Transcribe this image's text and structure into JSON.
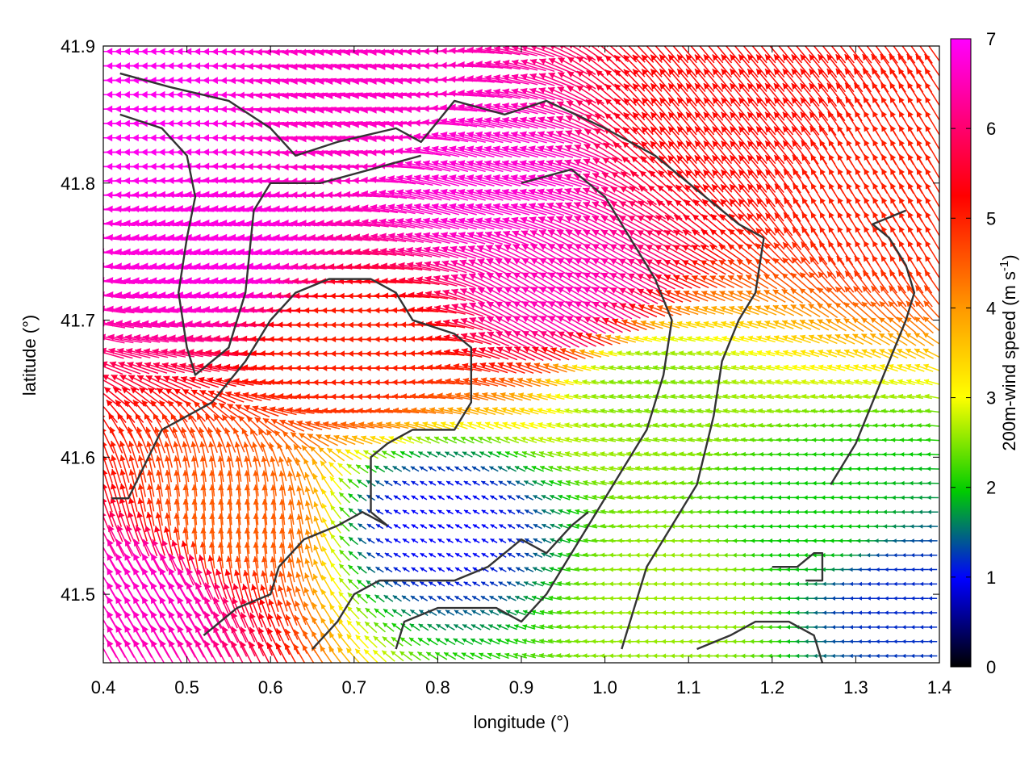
{
  "chart_data": {
    "type": "vector-field",
    "xlabel": "longitude (°)",
    "ylabel": "latitude (°)",
    "xlim": [
      0.4,
      1.4
    ],
    "ylim": [
      41.45,
      41.9
    ],
    "xticks": [
      "0.4",
      "0.5",
      "0.6",
      "0.7",
      "0.8",
      "0.9",
      "1.0",
      "1.1",
      "1.2",
      "1.3",
      "1.4"
    ],
    "yticks": [
      "41.5",
      "41.6",
      "41.7",
      "41.8",
      "41.9"
    ],
    "colorbar": {
      "title_main": "200m-wind speed (m s",
      "title_sup": "-1",
      "title_end": ")",
      "range": [
        0,
        7
      ],
      "ticks": [
        "0",
        "1",
        "2",
        "3",
        "4",
        "5",
        "6",
        "7"
      ],
      "palette": [
        "#000000",
        "#0000ff",
        "#00cc00",
        "#ffff00",
        "#ff9900",
        "#ff0000",
        "#ff00ff"
      ]
    },
    "wind_regions": [
      {
        "lon": 0.45,
        "lat": 41.85,
        "speed": 6.9,
        "direction_deg": 270
      },
      {
        "lon": 0.55,
        "lat": 41.75,
        "speed": 6.8,
        "direction_deg": 275
      },
      {
        "lon": 0.7,
        "lat": 41.85,
        "speed": 6.6,
        "direction_deg": 265
      },
      {
        "lon": 0.85,
        "lat": 41.8,
        "speed": 6.7,
        "direction_deg": 285
      },
      {
        "lon": 0.95,
        "lat": 41.72,
        "speed": 6.5,
        "direction_deg": 300
      },
      {
        "lon": 1.15,
        "lat": 41.85,
        "speed": 5.2,
        "direction_deg": 320
      },
      {
        "lon": 1.35,
        "lat": 41.8,
        "speed": 5.0,
        "direction_deg": 330
      },
      {
        "lon": 0.7,
        "lat": 41.68,
        "speed": 5.0,
        "direction_deg": 270
      },
      {
        "lon": 0.55,
        "lat": 41.55,
        "speed": 4.5,
        "direction_deg": 355
      },
      {
        "lon": 0.8,
        "lat": 41.55,
        "speed": 1.0,
        "direction_deg": 300
      },
      {
        "lon": 1.05,
        "lat": 41.65,
        "speed": 2.5,
        "direction_deg": 280
      },
      {
        "lon": 1.25,
        "lat": 41.55,
        "speed": 2.0,
        "direction_deg": 270
      },
      {
        "lon": 1.35,
        "lat": 41.5,
        "speed": 1.2,
        "direction_deg": 270
      },
      {
        "lon": 1.1,
        "lat": 41.5,
        "speed": 2.6,
        "direction_deg": 270
      },
      {
        "lon": 0.45,
        "lat": 41.5,
        "speed": 6.6,
        "direction_deg": 330
      }
    ],
    "boundaries": [
      [
        [
          0.42,
          41.88
        ],
        [
          0.48,
          41.87
        ],
        [
          0.55,
          41.86
        ],
        [
          0.6,
          41.84
        ],
        [
          0.63,
          41.82
        ],
        [
          0.68,
          41.83
        ],
        [
          0.75,
          41.84
        ],
        [
          0.78,
          41.83
        ],
        [
          0.82,
          41.86
        ],
        [
          0.88,
          41.85
        ],
        [
          0.93,
          41.86
        ],
        [
          1.0,
          41.84
        ],
        [
          1.06,
          41.82
        ],
        [
          1.12,
          41.79
        ],
        [
          1.16,
          41.77
        ],
        [
          1.19,
          41.76
        ]
      ],
      [
        [
          0.42,
          41.85
        ],
        [
          0.47,
          41.84
        ],
        [
          0.5,
          41.82
        ],
        [
          0.51,
          41.79
        ],
        [
          0.5,
          41.76
        ],
        [
          0.49,
          41.72
        ],
        [
          0.5,
          41.68
        ],
        [
          0.51,
          41.66
        ],
        [
          0.55,
          41.68
        ],
        [
          0.57,
          41.72
        ],
        [
          0.58,
          41.78
        ],
        [
          0.6,
          41.8
        ],
        [
          0.66,
          41.8
        ],
        [
          0.72,
          41.81
        ],
        [
          0.78,
          41.82
        ]
      ],
      [
        [
          0.41,
          41.57
        ],
        [
          0.43,
          41.57
        ],
        [
          0.47,
          41.62
        ],
        [
          0.5,
          41.63
        ],
        [
          0.53,
          41.64
        ],
        [
          0.57,
          41.67
        ],
        [
          0.6,
          41.7
        ],
        [
          0.63,
          41.72
        ],
        [
          0.67,
          41.73
        ],
        [
          0.72,
          41.73
        ],
        [
          0.75,
          41.72
        ],
        [
          0.77,
          41.7
        ],
        [
          0.82,
          41.69
        ],
        [
          0.84,
          41.68
        ],
        [
          0.84,
          41.64
        ],
        [
          0.82,
          41.62
        ],
        [
          0.77,
          41.62
        ],
        [
          0.74,
          41.61
        ],
        [
          0.72,
          41.6
        ],
        [
          0.72,
          41.56
        ],
        [
          0.74,
          41.55
        ]
      ],
      [
        [
          0.52,
          41.47
        ],
        [
          0.56,
          41.49
        ],
        [
          0.6,
          41.5
        ],
        [
          0.61,
          41.52
        ],
        [
          0.64,
          41.54
        ],
        [
          0.68,
          41.55
        ],
        [
          0.71,
          41.56
        ],
        [
          0.74,
          41.55
        ]
      ],
      [
        [
          0.65,
          41.46
        ],
        [
          0.68,
          41.48
        ],
        [
          0.7,
          41.5
        ],
        [
          0.73,
          41.51
        ],
        [
          0.78,
          41.51
        ],
        [
          0.82,
          41.51
        ],
        [
          0.86,
          41.52
        ],
        [
          0.9,
          41.54
        ],
        [
          0.93,
          41.53
        ],
        [
          0.96,
          41.55
        ],
        [
          0.98,
          41.56
        ]
      ],
      [
        [
          0.75,
          41.46
        ],
        [
          0.76,
          41.48
        ],
        [
          0.8,
          41.49
        ],
        [
          0.84,
          41.49
        ],
        [
          0.87,
          41.49
        ],
        [
          0.9,
          41.48
        ],
        [
          0.93,
          41.5
        ],
        [
          0.98,
          41.55
        ],
        [
          1.02,
          41.59
        ],
        [
          1.05,
          41.62
        ],
        [
          1.07,
          41.66
        ],
        [
          1.08,
          41.7
        ],
        [
          1.06,
          41.73
        ],
        [
          1.03,
          41.76
        ],
        [
          1.0,
          41.79
        ],
        [
          0.96,
          41.81
        ],
        [
          0.9,
          41.8
        ]
      ],
      [
        [
          1.02,
          41.46
        ],
        [
          1.05,
          41.52
        ],
        [
          1.08,
          41.55
        ],
        [
          1.11,
          41.58
        ],
        [
          1.13,
          41.63
        ],
        [
          1.14,
          41.67
        ],
        [
          1.16,
          41.7
        ],
        [
          1.18,
          41.72
        ],
        [
          1.19,
          41.76
        ]
      ],
      [
        [
          1.11,
          41.46
        ],
        [
          1.15,
          41.47
        ],
        [
          1.18,
          41.48
        ],
        [
          1.22,
          41.48
        ],
        [
          1.25,
          41.47
        ],
        [
          1.26,
          41.45
        ]
      ],
      [
        [
          1.2,
          41.52
        ],
        [
          1.23,
          41.52
        ],
        [
          1.25,
          41.53
        ],
        [
          1.26,
          41.53
        ],
        [
          1.26,
          41.51
        ],
        [
          1.24,
          41.51
        ]
      ],
      [
        [
          1.27,
          41.58
        ],
        [
          1.3,
          41.61
        ],
        [
          1.32,
          41.64
        ],
        [
          1.34,
          41.67
        ],
        [
          1.36,
          41.7
        ],
        [
          1.37,
          41.72
        ],
        [
          1.36,
          41.74
        ],
        [
          1.34,
          41.76
        ],
        [
          1.32,
          41.77
        ],
        [
          1.36,
          41.78
        ]
      ]
    ]
  }
}
